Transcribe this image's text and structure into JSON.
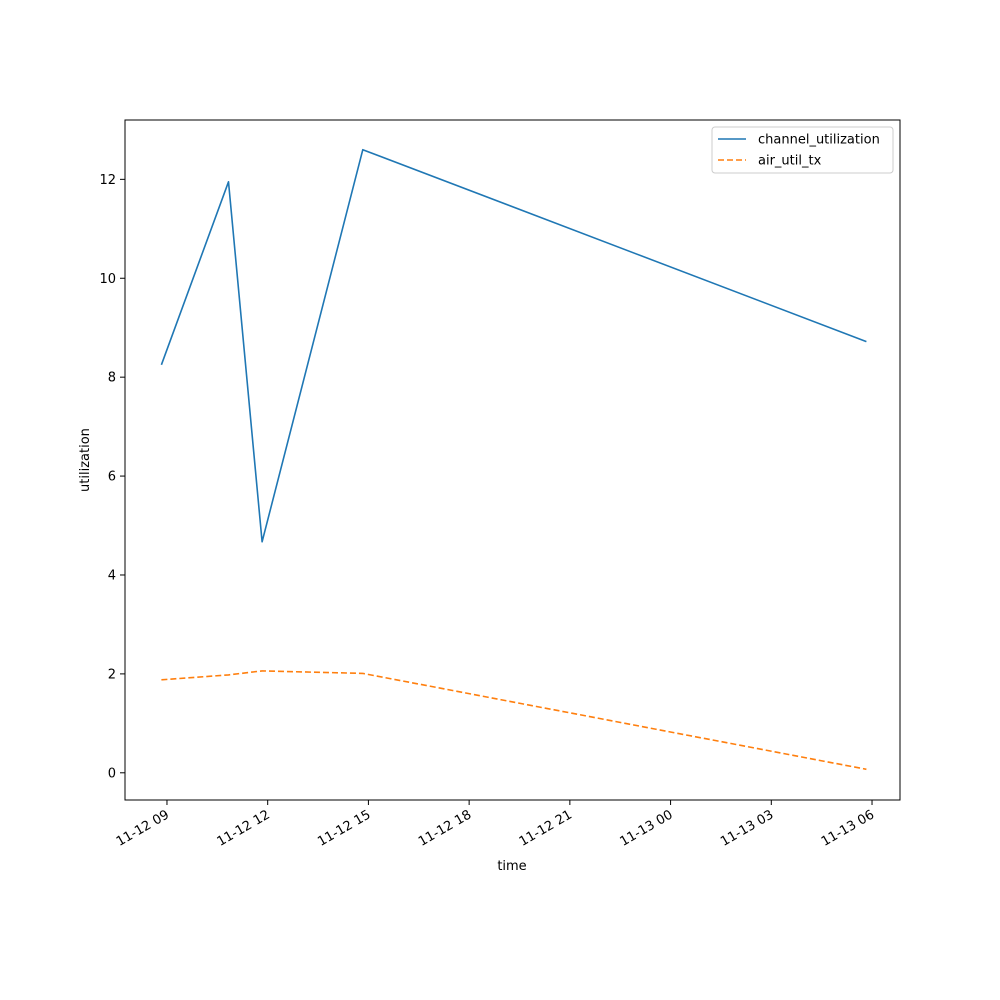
{
  "chart_data": {
    "type": "line",
    "title": "",
    "xlabel": "time",
    "ylabel": "utilization",
    "x": [
      "2024-11-12T08:50",
      "2024-11-12T10:50",
      "2024-11-12T11:50",
      "2024-11-12T14:50",
      "2024-11-13T05:50"
    ],
    "x_ticks": [
      "11-12 09",
      "11-12 12",
      "11-12 15",
      "11-12 18",
      "11-12 21",
      "11-13 00",
      "11-13 03",
      "11-13 06"
    ],
    "y_ticks": [
      "0",
      "2",
      "4",
      "6",
      "8",
      "10",
      "12"
    ],
    "ylim": [
      -0.55,
      13.2
    ],
    "xlim": [
      "2024-11-12T07:45",
      "2024-11-13T06:50"
    ],
    "series": [
      {
        "name": "channel_utilization",
        "color": "#1f77b4",
        "style": "solid",
        "values": [
          8.25,
          11.95,
          4.67,
          12.6,
          8.72
        ]
      },
      {
        "name": "air_util_tx",
        "color": "#ff7f0e",
        "style": "dashed",
        "values": [
          1.88,
          1.98,
          2.06,
          2.01,
          0.07
        ]
      }
    ],
    "legend": "top-right",
    "grid": false
  }
}
